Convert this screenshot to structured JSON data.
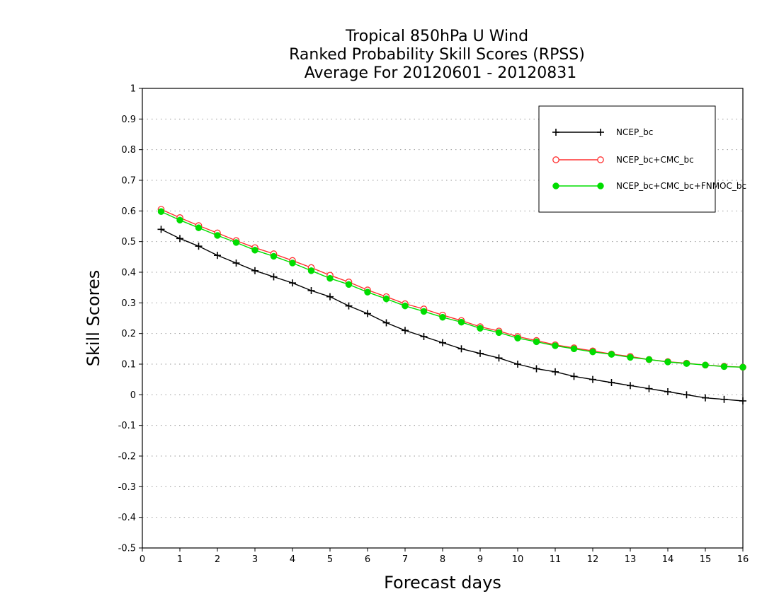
{
  "chart_data": {
    "type": "line",
    "title_lines": [
      "Tropical 850hPa U Wind",
      "Ranked Probability Skill Scores (RPSS)",
      "Average For 20120601 - 20120831"
    ],
    "xlabel": "Forecast days",
    "ylabel": "Skill Scores",
    "xlim": [
      0,
      16
    ],
    "ylim": [
      -0.5,
      1
    ],
    "xticks": [
      "0",
      "1",
      "2",
      "3",
      "4",
      "5",
      "6",
      "7",
      "8",
      "9",
      "10",
      "11",
      "12",
      "13",
      "14",
      "15",
      "16"
    ],
    "yticks": [
      "-0.5",
      "-0.4",
      "-0.3",
      "-0.2",
      "-0.1",
      "0",
      "0.1",
      "0.2",
      "0.3",
      "0.4",
      "0.5",
      "0.6",
      "0.7",
      "0.8",
      "0.9",
      "1"
    ],
    "grid": "horizontal dotted",
    "legend_position": "top-right",
    "x": [
      0.5,
      1,
      1.5,
      2,
      2.5,
      3,
      3.5,
      4,
      4.5,
      5,
      5.5,
      6,
      6.5,
      7,
      7.5,
      8,
      8.5,
      9,
      9.5,
      10,
      10.5,
      11,
      11.5,
      12,
      12.5,
      13,
      13.5,
      14,
      14.5,
      15,
      15.5,
      16
    ],
    "series": [
      {
        "name": "NCEP_bc",
        "color": "#000000",
        "marker": "plus",
        "values": [
          0.54,
          0.51,
          0.485,
          0.455,
          0.43,
          0.405,
          0.385,
          0.365,
          0.34,
          0.32,
          0.29,
          0.265,
          0.235,
          0.21,
          0.19,
          0.17,
          0.15,
          0.135,
          0.12,
          0.1,
          0.085,
          0.075,
          0.06,
          0.05,
          0.04,
          0.03,
          0.02,
          0.01,
          0.0,
          -0.01,
          -0.015,
          -0.02
        ]
      },
      {
        "name": "NCEP_bc+CMC_bc",
        "color": "#ff3030",
        "marker": "open-circle",
        "values": [
          0.605,
          0.578,
          0.552,
          0.528,
          0.503,
          0.48,
          0.46,
          0.438,
          0.415,
          0.39,
          0.368,
          0.342,
          0.32,
          0.297,
          0.28,
          0.26,
          0.242,
          0.222,
          0.208,
          0.19,
          0.177,
          0.163,
          0.153,
          0.143,
          0.133,
          0.125,
          0.115,
          0.108,
          0.103,
          0.097,
          0.093,
          0.09
        ]
      },
      {
        "name": "NCEP_bc+CMC_bc+FNMOC_bc",
        "color": "#00dd00",
        "marker": "filled-circle",
        "values": [
          0.598,
          0.57,
          0.545,
          0.52,
          0.497,
          0.472,
          0.452,
          0.43,
          0.405,
          0.38,
          0.36,
          0.335,
          0.313,
          0.29,
          0.272,
          0.253,
          0.237,
          0.217,
          0.203,
          0.185,
          0.173,
          0.16,
          0.15,
          0.14,
          0.132,
          0.122,
          0.115,
          0.107,
          0.102,
          0.097,
          0.092,
          0.09
        ]
      }
    ]
  }
}
